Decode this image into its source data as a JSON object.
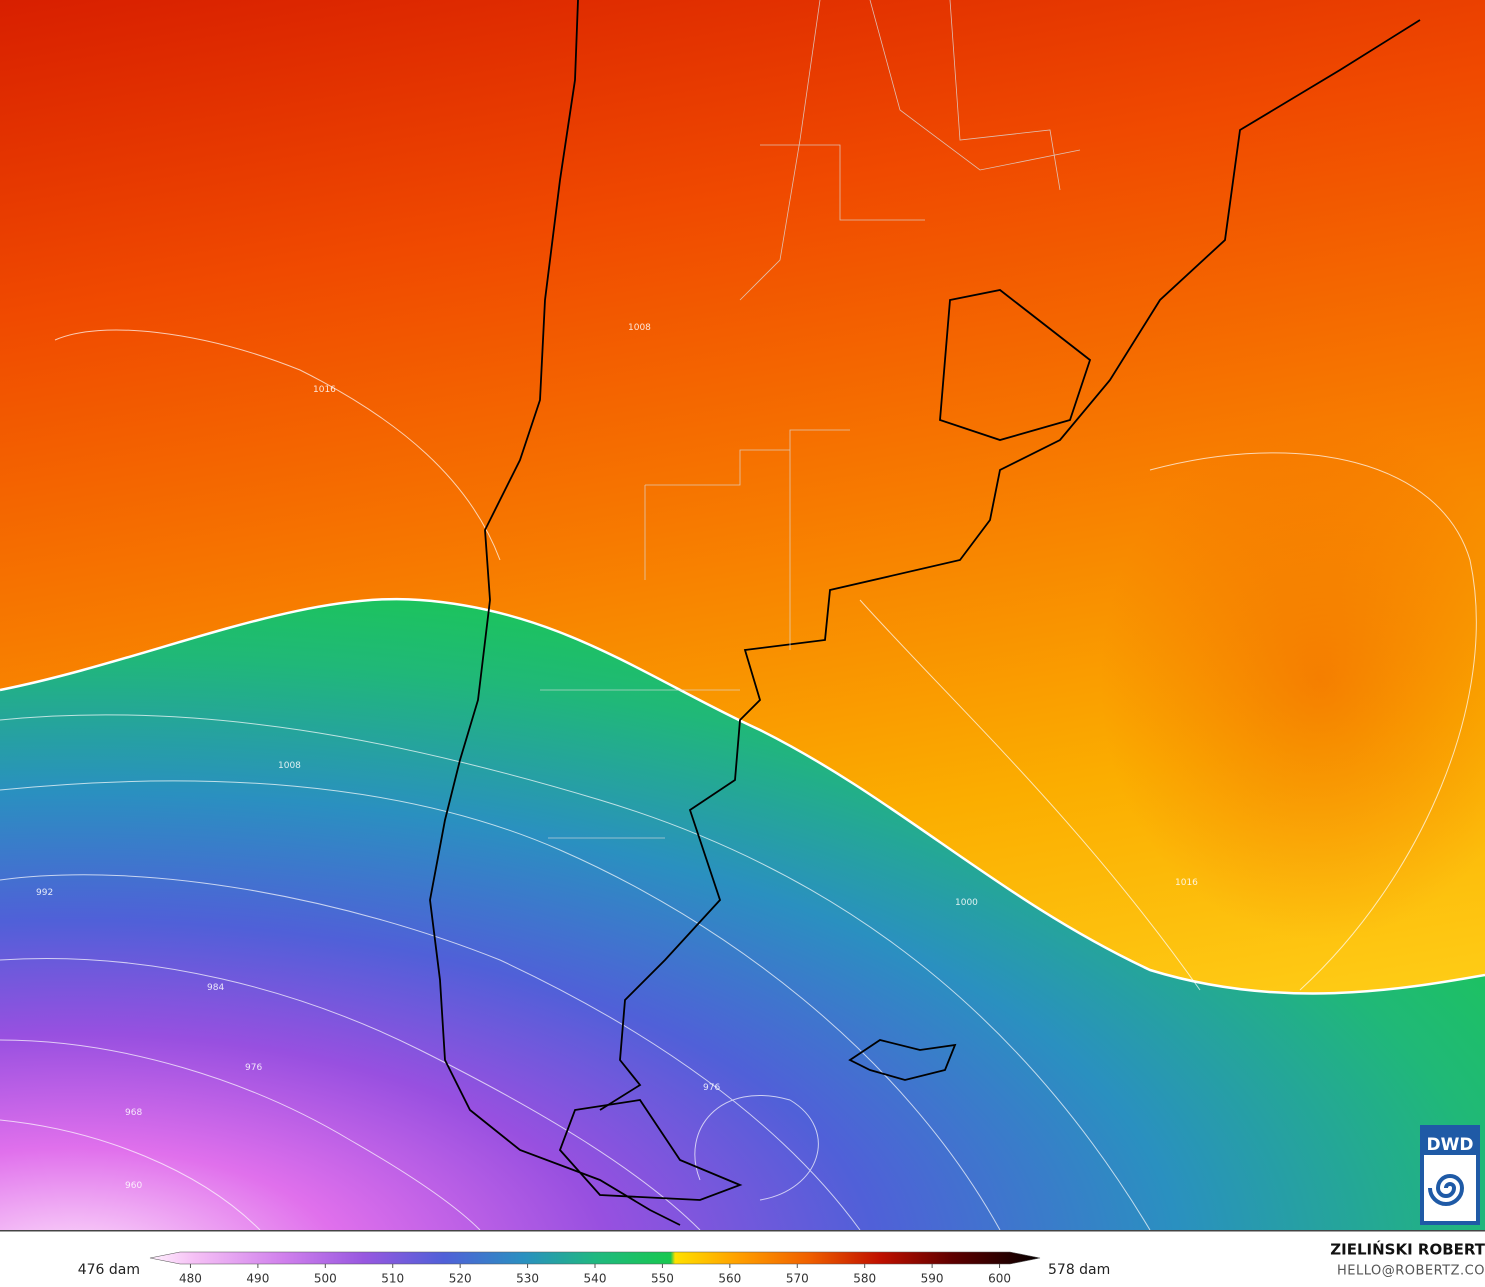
{
  "map": {
    "contour_labels": [
      "1016",
      "1016",
      "1008",
      "1008",
      "1000",
      "992",
      "984",
      "976",
      "976",
      "968",
      "960"
    ]
  },
  "logo": "DWD",
  "colorbar": {
    "min_label": "476 dam",
    "max_label": "578 dam",
    "lim": [
      474,
      606
    ],
    "ticks": [
      480,
      490,
      500,
      510,
      520,
      530,
      540,
      550,
      560,
      570,
      580,
      590,
      600
    ]
  },
  "credit": {
    "name": "ZIELIŃSKI ROBERT",
    "email": "HELLO@ROBERTZ.CO"
  }
}
